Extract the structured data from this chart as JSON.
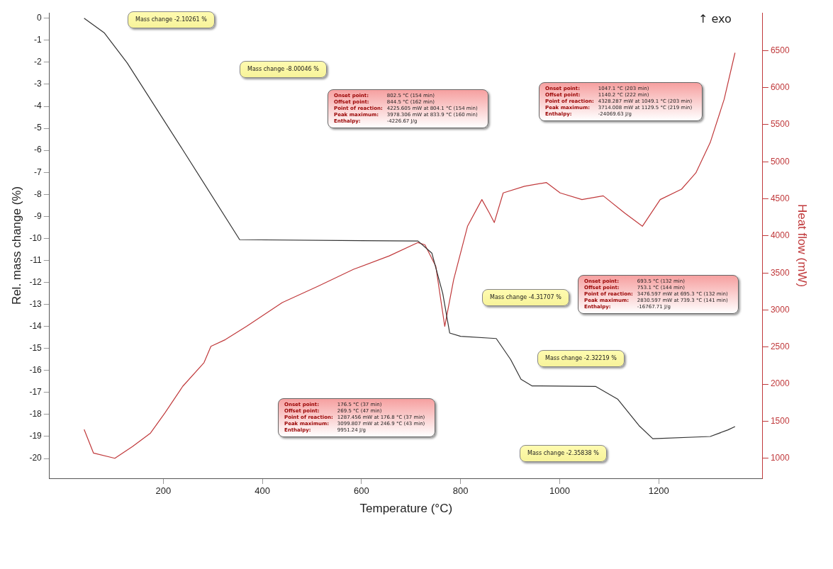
{
  "chart_data": {
    "type": "line",
    "xlabel": "Temperature (°C)",
    "ylabel": "Rel. mass change (%)",
    "y2label": "Heat flow (mW)",
    "xlim": [
      -30,
      1410
    ],
    "xticks": [
      200,
      400,
      600,
      800,
      1000,
      1200
    ],
    "ylim": [
      -20.9,
      0.25
    ],
    "yticks": [
      0,
      -1,
      -2,
      -3,
      -4,
      -5,
      -6,
      -7,
      -8,
      -9,
      -10,
      -11,
      -12,
      -13,
      -14,
      -15,
      -16,
      -17,
      -18,
      -19,
      -20
    ],
    "y2lim": [
      730,
      7010
    ],
    "y2ticks": [
      1000,
      1500,
      2000,
      2500,
      3000,
      3500,
      4000,
      4500,
      5000,
      5500,
      6000,
      6500
    ],
    "grid": false,
    "legend": false,
    "series": [
      {
        "color": "#333333",
        "axis": "y",
        "x": [
          40,
          81,
          127,
          239,
          354,
          714,
          742,
          764,
          778,
          800,
          872,
          901,
          922,
          944,
          1073,
          1117,
          1160,
          1188,
          1304,
          1340,
          1354
        ],
        "values": [
          0,
          -0.67,
          -2.03,
          -5.97,
          -10.06,
          -10.12,
          -10.67,
          -12.5,
          -14.3,
          -14.45,
          -14.55,
          -15.5,
          -16.4,
          -16.7,
          -16.73,
          -17.3,
          -18.5,
          -19.1,
          -19.0,
          -18.7,
          -18.55
        ]
      },
      {
        "color": "#c0393b",
        "axis": "y2",
        "x": [
          40,
          59,
          102,
          138,
          174,
          203,
          239,
          282,
          296,
          325,
          368,
          440,
          512,
          584,
          656,
          714,
          728,
          750,
          768,
          786,
          814,
          843,
          858,
          868,
          886,
          929,
          973,
          1001,
          1045,
          1088,
          1131,
          1167,
          1203,
          1246,
          1275,
          1304,
          1332,
          1354
        ],
        "values": [
          1390,
          1070,
          1000,
          1160,
          1340,
          1610,
          1970,
          2290,
          2510,
          2600,
          2780,
          3100,
          3320,
          3550,
          3730,
          3910,
          3880,
          3590,
          2780,
          3410,
          4130,
          4490,
          4310,
          4180,
          4580,
          4670,
          4720,
          4580,
          4490,
          4540,
          4310,
          4130,
          4490,
          4630,
          4850,
          5260,
          5840,
          6470
        ]
      }
    ],
    "annotations": [
      "↑ exo",
      "Mass change  -2.10261 %",
      "Mass change  -8.00046 %",
      "Mass change  -4.31707 %",
      "Mass change  -2.32219 %",
      "Mass change  -2.35838 %",
      "Onset point:\t802.5 °C (154 min)\nOffset point:\t844.5 °C (162 min)\nPoint of reaction:\t4225.605 mW at 804.1 °C (154 min)\nPeak maximum:\t3978.306 mW at 833.9 °C (160 min)\nEnthalpy:\t-4226.67 J/g",
      "Onset point:\t1047.1 °C (203 min)\nOffset point:\t1140.2 °C (222 min)\nPoint of reaction:\t4328.287 mW at 1049.1 °C (203 min)\nPeak maximum:\t3714.008 mW at 1129.5 °C (219 min)\nEnthalpy:\t-24069.63 J/g",
      "Onset point:\t693.5 °C (132 min)\nOffset point:\t753.1 °C (144 min)\nPoint of reaction:\t3476.597 mW at 695.3 °C (132 min)\nPeak maximum:\t2830.597 mW at 739.3 °C (141 min)\nEnthalpy:\t-16767.71 J/g",
      "Onset point:\t176.5 °C (37 min)\nOffset point:\t269.5 °C (47 min)\nPoint of reaction:\t1287.456 mW at 176.8 °C (37 min)\nPeak maximum:\t3099.807 mW at 246.9 °C (43 min)\nEnthalpy:\t9951.24 J/g"
    ]
  }
}
